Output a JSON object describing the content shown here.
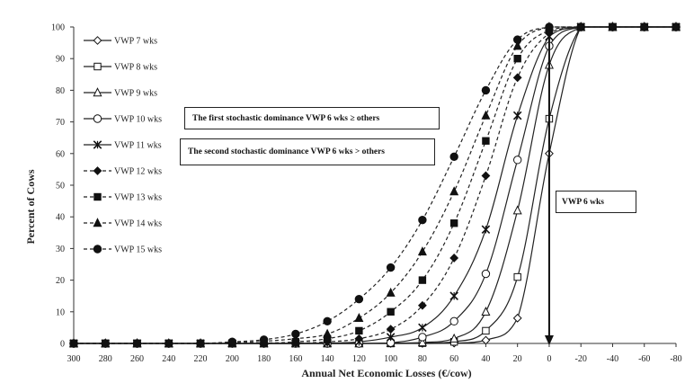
{
  "chart_data": {
    "type": "line",
    "xlabel": "Annual Net Economic Losses (€/cow)",
    "ylabel": "Percent of Cows",
    "xlim": [
      300,
      -80
    ],
    "ylim": [
      0,
      100
    ],
    "x_ticks": [
      "300",
      "280",
      "260",
      "240",
      "220",
      "200",
      "180",
      "160",
      "140",
      "120",
      "100",
      "80",
      "60",
      "40",
      "20",
      "0",
      "-20",
      "-40",
      "-60",
      "-80"
    ],
    "y_ticks": [
      "0",
      "10",
      "20",
      "30",
      "40",
      "50",
      "60",
      "70",
      "80",
      "90",
      "100"
    ],
    "x_axis_reversed": true,
    "grid": false,
    "legend_position": "left",
    "marker_x": [
      300,
      280,
      260,
      240,
      220,
      200,
      180,
      160,
      140,
      120,
      100,
      80,
      60,
      40,
      20,
      0,
      -20,
      -40,
      -60,
      -80
    ],
    "series": [
      {
        "name": "VWP 7 wks",
        "marker": "diamond-open",
        "dash": "solid",
        "values": [
          0,
          0,
          0,
          0,
          0,
          0,
          0,
          0,
          0,
          0,
          0,
          0,
          0.1,
          1,
          8,
          60,
          100,
          100,
          100,
          100
        ]
      },
      {
        "name": "VWP 8 wks",
        "marker": "square-open",
        "dash": "solid",
        "values": [
          0,
          0,
          0,
          0,
          0,
          0,
          0,
          0,
          0,
          0,
          0,
          0.1,
          0.5,
          4,
          21,
          71,
          100,
          100,
          100,
          100
        ]
      },
      {
        "name": "VWP 9 wks",
        "marker": "triangle-open",
        "dash": "solid",
        "values": [
          0,
          0,
          0,
          0,
          0,
          0,
          0,
          0,
          0,
          0,
          0.1,
          0.3,
          1.5,
          10,
          42,
          88,
          100,
          100,
          100,
          100
        ]
      },
      {
        "name": "VWP 10 wks",
        "marker": "circle-open",
        "dash": "solid",
        "values": [
          0,
          0,
          0,
          0,
          0,
          0,
          0,
          0,
          0,
          0,
          0.2,
          2,
          7,
          22,
          58,
          94,
          100,
          100,
          100,
          100
        ]
      },
      {
        "name": "VWP 11 wks",
        "marker": "star",
        "dash": "solid",
        "values": [
          0,
          0,
          0,
          0,
          0,
          0,
          0,
          0,
          0.1,
          0.5,
          2,
          5,
          15,
          36,
          72,
          97,
          100,
          100,
          100,
          100
        ]
      },
      {
        "name": "VWP 12 wks",
        "marker": "diamond-filled",
        "dash": "dashed",
        "values": [
          0,
          0,
          0,
          0,
          0,
          0,
          0,
          0.1,
          0.5,
          1.5,
          4.5,
          12,
          27,
          53,
          84,
          98,
          100,
          100,
          100,
          100
        ]
      },
      {
        "name": "VWP 13 wks",
        "marker": "square-filled",
        "dash": "dashed",
        "values": [
          0,
          0,
          0,
          0,
          0,
          0,
          0.1,
          0.5,
          1.5,
          4,
          10,
          20,
          38,
          64,
          90,
          99,
          100,
          100,
          100,
          100
        ]
      },
      {
        "name": "VWP 14 wks",
        "marker": "triangle-filled",
        "dash": "dashed",
        "values": [
          0,
          0,
          0,
          0,
          0,
          0.2,
          0.7,
          1.5,
          3,
          8,
          16,
          29,
          48,
          72,
          94,
          100,
          100,
          100,
          100,
          100
        ]
      },
      {
        "name": "VWP 15 wks",
        "marker": "circle-filled",
        "dash": "dashed",
        "values": [
          0,
          0,
          0,
          0,
          0,
          0.5,
          1.2,
          3,
          7,
          14,
          24,
          39,
          59,
          80,
          96,
          100,
          100,
          100,
          100,
          100
        ]
      }
    ],
    "annotations": [
      {
        "text": "The first stochastic dominance  VWP 6 wks ≥ others"
      },
      {
        "text": "The second  stochastic dominance VWP 6 wks > others"
      },
      {
        "text": "VWP 6 wks",
        "arrow_x": 0,
        "arrow_from_y": 100,
        "arrow_to_y": 0
      }
    ]
  }
}
